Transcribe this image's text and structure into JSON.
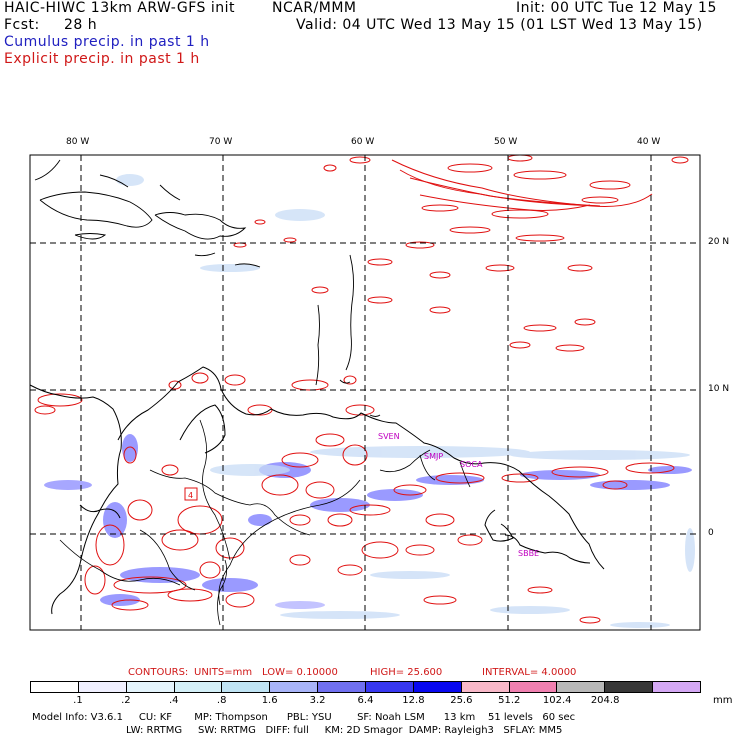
{
  "header": {
    "model_title": "HAIC-HIWC 13km ARW-GFS init",
    "institution": "NCAR/MMM",
    "init_time": "Init: 00 UTC Tue 12 May 15",
    "fcst_label": "Fcst:",
    "fcst_hours": "28 h",
    "valid_time": "Valid: 04 UTC Wed 13 May 15 (01 LST Wed 13 May 15)",
    "legend_cumulus": "Cumulus precip. in past 1 h",
    "legend_explicit": "Explicit precip. in past 1 h"
  },
  "map": {
    "lon_labels": [
      "80 W",
      "70 W",
      "60 W",
      "50 W",
      "40 W"
    ],
    "lat_labels": [
      "20 N",
      "10 N",
      "0"
    ],
    "stations": [
      "SVEN",
      "SMJP",
      "SOCA",
      "SBBE"
    ],
    "colors": {
      "explicit_contour": "#e01010",
      "cumulus_shade": "#4848ff",
      "grid": "#000000",
      "station": "#c000c0"
    }
  },
  "contours_info": {
    "label": "CONTOURS:",
    "units": "UNITS=mm",
    "low": "LOW= 0.10000",
    "high": "HIGH= 25.600",
    "interval": "INTERVAL= 4.0000"
  },
  "colorbar": {
    "thresholds": [
      ".1",
      ".2",
      ".4",
      ".8",
      "1.6",
      "3.2",
      "6.4",
      "12.8",
      "25.6",
      "51.2",
      "102.4",
      "204.8"
    ],
    "units": "mm",
    "colors": [
      "#ffffff",
      "#f0f0ff",
      "#e4f4fc",
      "#d4f0f8",
      "#c0e4f4",
      "#a8b4f8",
      "#7070f0",
      "#3838f0",
      "#0808f0",
      "#f8b8c8",
      "#f080b0",
      "#b8b8b8",
      "#383838",
      "#d4a8f4"
    ]
  },
  "footer": {
    "line1": "Model Info: V3.6.1     CU: KF       MP: Thompson      PBL: YSU        SF: Noah LSM      13 km    51 levels   60 sec",
    "line2": "LW: RRTMG     SW: RRTMG   DIFF: full     KM: 2D Smagor  DAMP: Rayleigh3   SFLAY: MM5"
  }
}
